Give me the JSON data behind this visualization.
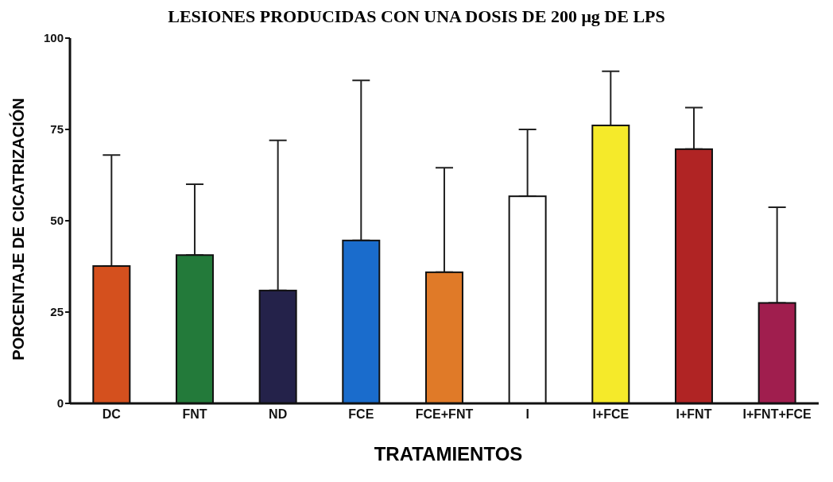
{
  "chart_data": {
    "type": "bar",
    "title": "LESIONES PRODUCIDAS CON UNA DOSIS DE 200 μg DE LPS",
    "xlabel": "TRATAMIENTOS",
    "ylabel": "PORCENTAJE DE CICATRIZACIÓN",
    "categories": [
      "DC",
      "FNT",
      "ND",
      "FCE",
      "FCE+FNT",
      "I",
      "I+FCE",
      "I+FNT",
      "I+FNT+FCE"
    ],
    "values": [
      37.6,
      40.6,
      30.9,
      44.6,
      35.9,
      56.7,
      76.1,
      69.6,
      27.5
    ],
    "colors": [
      "#d4501e",
      "#237a3a",
      "#24224a",
      "#1a6ccc",
      "#e07a28",
      "#ffffff",
      "#f5ea2a",
      "#b02424",
      "#a01e4e"
    ],
    "errors": [
      [
        37.6,
        68
      ],
      [
        40.6,
        60
      ],
      [
        30.9,
        72
      ],
      [
        44.6,
        88.4
      ],
      [
        35.9,
        64.5
      ],
      [
        56.7,
        75
      ],
      [
        76.1,
        90.9
      ],
      [
        69.6,
        81
      ],
      [
        27.5,
        53.7
      ]
    ],
    "ylim": [
      0,
      100
    ],
    "yticks": [
      0,
      25,
      50,
      75,
      100
    ],
    "grid": false
  }
}
